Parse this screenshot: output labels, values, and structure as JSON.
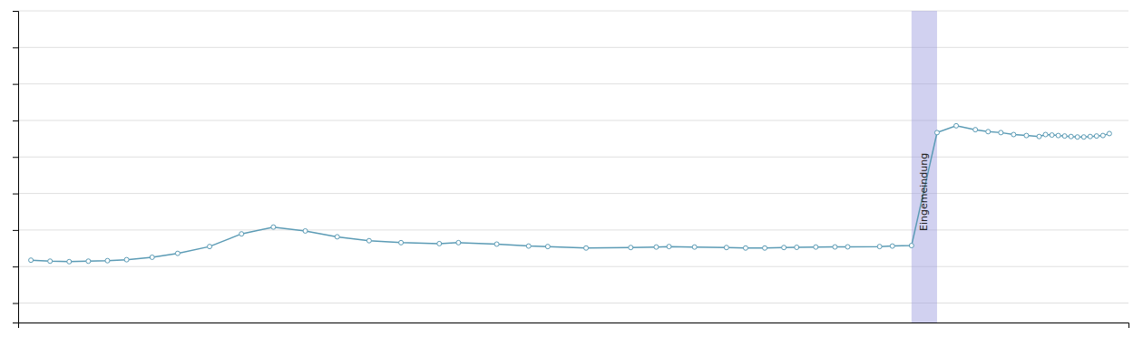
{
  "chart_data": {
    "type": "line",
    "x": [
      1852,
      1855,
      1858,
      1861,
      1864,
      1867,
      1871,
      1875,
      1880,
      1885,
      1890,
      1895,
      1900,
      1905,
      1910,
      1916,
      1919,
      1925,
      1930,
      1933,
      1939,
      1946,
      1950,
      1952,
      1956,
      1961,
      1964,
      1967,
      1970,
      1972,
      1975,
      1978,
      1980,
      1985,
      1987,
      1990,
      1994,
      1997,
      2000,
      2002,
      2004,
      2006,
      2008,
      2010,
      2011,
      2012,
      2013,
      2014,
      2015,
      2016,
      2017,
      2018,
      2019,
      2020,
      2021
    ],
    "values": [
      44000,
      43000,
      42500,
      43000,
      43500,
      44500,
      47000,
      51000,
      58000,
      71000,
      78000,
      74000,
      68000,
      64000,
      62000,
      61000,
      62000,
      60500,
      58500,
      58000,
      56500,
      57000,
      57500,
      58000,
      57500,
      57000,
      56500,
      56500,
      57000,
      57200,
      57500,
      57600,
      57700,
      58000,
      58500,
      59000,
      175000,
      182000,
      178000,
      176000,
      175000,
      173000,
      172000,
      171000,
      173000,
      172500,
      172000,
      171500,
      171000,
      170500,
      170500,
      171000,
      171500,
      172000,
      174000
    ],
    "color": "#5b9bb5",
    "marker": "circle",
    "xlim": [
      1850,
      2024
    ],
    "ylim": [
      -20000,
      300000
    ],
    "yticks": [
      0,
      37500,
      75000,
      112500,
      150000,
      187500,
      225000,
      262500,
      300000
    ],
    "grid": true,
    "tick_labels": false,
    "annotations": [
      {
        "text": "Eingemeindung",
        "x_start": 1990,
        "x_end": 1994,
        "color": "#9999dd"
      }
    ]
  }
}
